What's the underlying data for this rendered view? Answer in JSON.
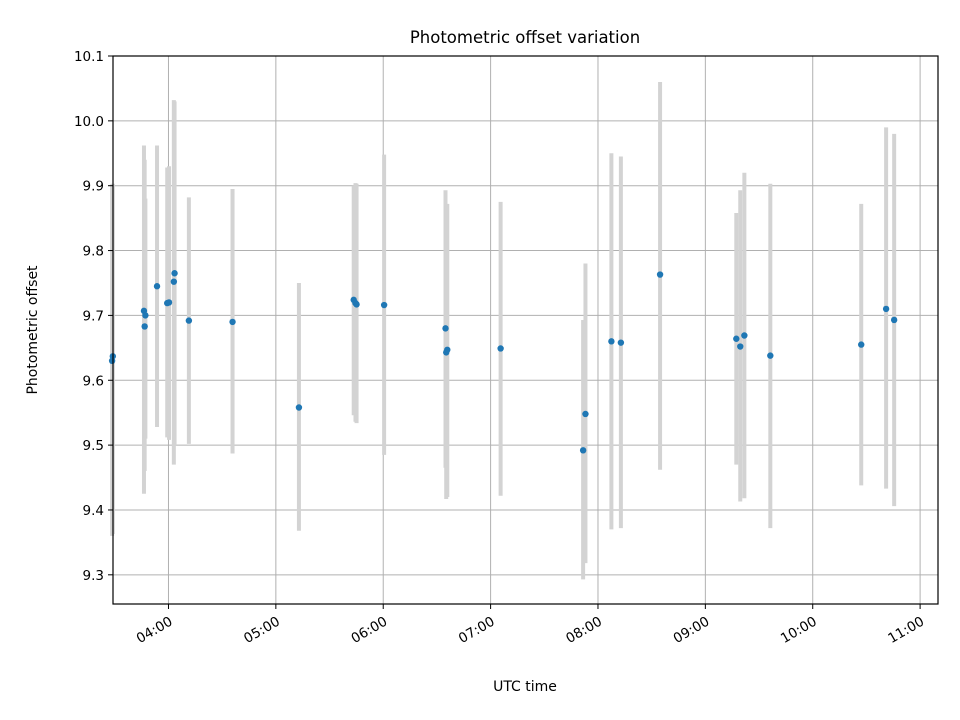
{
  "chart_data": {
    "type": "scatter",
    "title": "Photometric offset variation",
    "xlabel": "UTC time",
    "ylabel": "Photometric offset",
    "xlim": [
      "03:29",
      "11:10"
    ],
    "ylim": [
      9.255,
      10.1
    ],
    "grid": true,
    "x_ticks": [
      "04:00",
      "05:00",
      "06:00",
      "07:00",
      "08:00",
      "09:00",
      "10:00",
      "11:00"
    ],
    "y_ticks": [
      9.3,
      9.4,
      9.5,
      9.6,
      9.7,
      9.8,
      9.9,
      10.0,
      10.1
    ],
    "y_tick_labels": [
      "9.3",
      "9.4",
      "9.5",
      "9.6",
      "9.7",
      "9.8",
      "9.9",
      "10.0",
      "10.1"
    ],
    "colors": {
      "point": "#1f77b4",
      "errorbar": "#d3d3d3",
      "grid": "#b0b0b0"
    },
    "points": [
      {
        "x": "03:28:30",
        "y": 9.63,
        "ylo": 9.36,
        "yhi": 9.902
      },
      {
        "x": "03:28:54",
        "y": 9.637,
        "ylo": 9.363,
        "yhi": 9.903
      },
      {
        "x": "03:46:18",
        "y": 9.707,
        "ylo": 9.425,
        "yhi": 9.962
      },
      {
        "x": "03:46:42",
        "y": 9.683,
        "ylo": 9.46,
        "yhi": 9.94
      },
      {
        "x": "03:47:06",
        "y": 9.7,
        "ylo": 9.51,
        "yhi": 9.88
      },
      {
        "x": "03:53:36",
        "y": 9.745,
        "ylo": 9.528,
        "yhi": 9.962
      },
      {
        "x": "03:59:18",
        "y": 9.719,
        "ylo": 9.512,
        "yhi": 9.928
      },
      {
        "x": "04:00:18",
        "y": 9.72,
        "ylo": 9.508,
        "yhi": 9.93
      },
      {
        "x": "04:03:00",
        "y": 9.752,
        "ylo": 9.47,
        "yhi": 10.032
      },
      {
        "x": "04:03:24",
        "y": 9.765,
        "ylo": 9.5,
        "yhi": 10.03
      },
      {
        "x": "04:11:24",
        "y": 9.692,
        "ylo": 9.502,
        "yhi": 9.882
      },
      {
        "x": "04:35:48",
        "y": 9.69,
        "ylo": 9.487,
        "yhi": 9.895
      },
      {
        "x": "05:12:54",
        "y": 9.558,
        "ylo": 9.368,
        "yhi": 9.75
      },
      {
        "x": "05:43:30",
        "y": 9.724,
        "ylo": 9.546,
        "yhi": 9.9
      },
      {
        "x": "05:44:30",
        "y": 9.719,
        "ylo": 9.536,
        "yhi": 9.904
      },
      {
        "x": "05:45:06",
        "y": 9.717,
        "ylo": 9.534,
        "yhi": 9.903
      },
      {
        "x": "06:00:30",
        "y": 9.716,
        "ylo": 9.485,
        "yhi": 9.948
      },
      {
        "x": "06:34:48",
        "y": 9.68,
        "ylo": 9.465,
        "yhi": 9.893
      },
      {
        "x": "06:35:12",
        "y": 9.643,
        "ylo": 9.417,
        "yhi": 9.87
      },
      {
        "x": "06:35:48",
        "y": 9.647,
        "ylo": 9.42,
        "yhi": 9.872
      },
      {
        "x": "07:05:36",
        "y": 9.649,
        "ylo": 9.422,
        "yhi": 9.875
      },
      {
        "x": "07:51:42",
        "y": 9.492,
        "ylo": 9.293,
        "yhi": 9.693
      },
      {
        "x": "07:53:00",
        "y": 9.548,
        "ylo": 9.318,
        "yhi": 9.78
      },
      {
        "x": "08:07:30",
        "y": 9.66,
        "ylo": 9.37,
        "yhi": 9.95
      },
      {
        "x": "08:12:48",
        "y": 9.658,
        "ylo": 9.372,
        "yhi": 9.945
      },
      {
        "x": "08:34:42",
        "y": 9.763,
        "ylo": 9.462,
        "yhi": 10.06
      },
      {
        "x": "09:17:18",
        "y": 9.664,
        "ylo": 9.47,
        "yhi": 9.858
      },
      {
        "x": "09:19:30",
        "y": 9.652,
        "ylo": 9.413,
        "yhi": 9.893
      },
      {
        "x": "09:21:48",
        "y": 9.669,
        "ylo": 9.418,
        "yhi": 9.92
      },
      {
        "x": "09:36:18",
        "y": 9.638,
        "ylo": 9.372,
        "yhi": 9.903
      },
      {
        "x": "10:27:06",
        "y": 9.655,
        "ylo": 9.438,
        "yhi": 9.872
      },
      {
        "x": "10:41:00",
        "y": 9.71,
        "ylo": 9.433,
        "yhi": 9.99
      },
      {
        "x": "10:45:30",
        "y": 9.693,
        "ylo": 9.406,
        "yhi": 9.98
      }
    ]
  }
}
